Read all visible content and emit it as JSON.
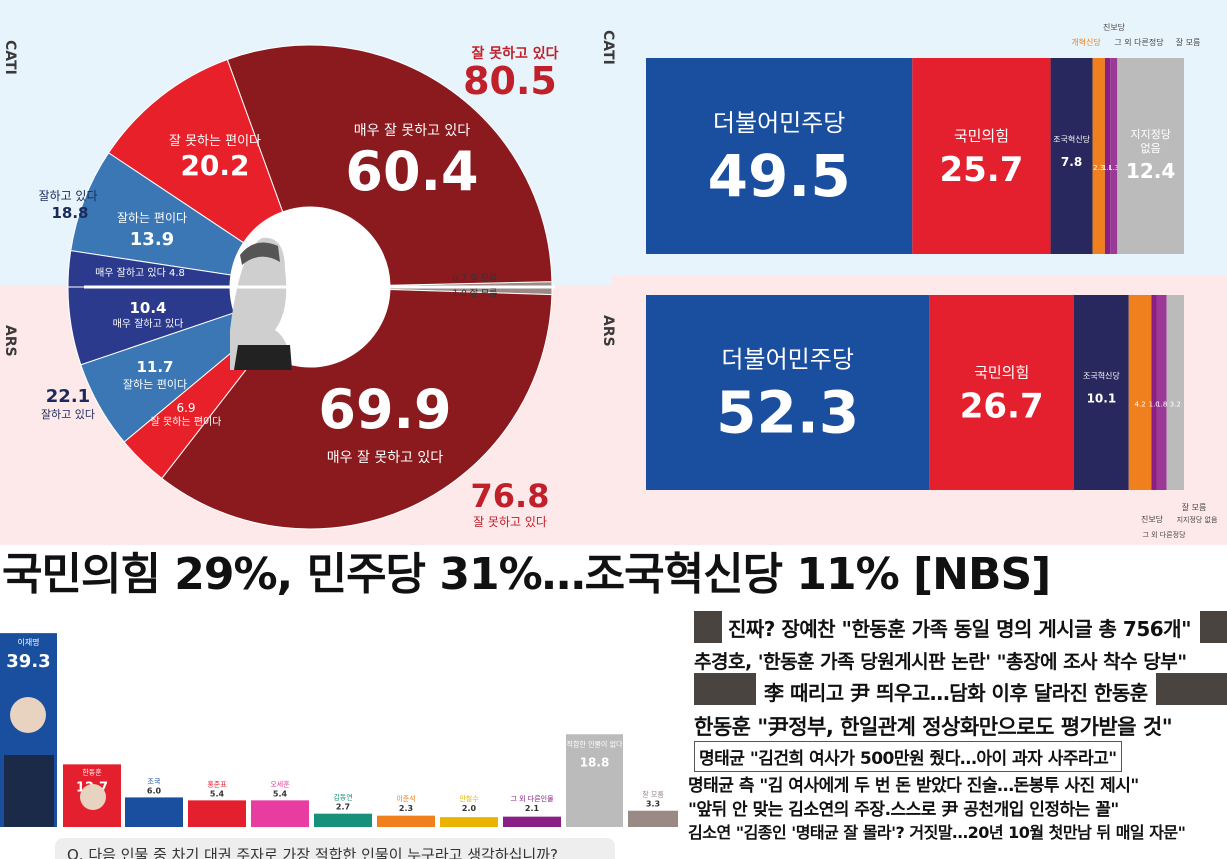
{
  "left_panel": {
    "cati_label": "CATI",
    "ars_label": "ARS"
  },
  "right_panel": {
    "cati_label": "CATI",
    "ars_label": "ARS"
  },
  "headline": "국민의힘 29%, 민주당 31%…조국혁신당 11% [NBS]",
  "news": [
    {
      "text": "진짜? 장예찬 \"한동훈 가족 동일 명의 게시글 총 756개\"",
      "has_thumb": true
    },
    {
      "text": "추경호, '한동훈 가족 당원게시판 논란' \"총장에 조사 착수 당부\"",
      "has_thumb": false
    },
    {
      "text": "李 때리고 尹 띄우고…담화 이후 달라진 한동훈",
      "has_thumb": true
    },
    {
      "text": "한동훈 \"尹정부, 한일관계 정상화만으로도 평가받을 것\"",
      "has_thumb": false
    },
    {
      "text": "명태균 \"김건희 여사가 500만원 줬다…아이 과자 사주라고\"",
      "has_thumb": false
    },
    {
      "text": "명태균 측 \"김 여사에게 두 번 돈 받았다 진술…돈봉투 사진 제시\"",
      "has_thumb": false
    },
    {
      "text": "\"앞뒤 안 맞는 김소연의 주장.스스로 尹 공천개입 인정하는 꼴\"",
      "has_thumb": false
    },
    {
      "text": "김소연 \"김종인 '명태균 잘 몰라'? 거짓말…20년 10월 첫만남 뒤 매일 자문\"",
      "has_thumb": false
    }
  ],
  "question": "Q. 다음 인물 중 차기 대권 주자로 가장 적합한 인물이 누구라고 생각하십니까?",
  "colors": {
    "very_bad": "#8b1a1f",
    "somewhat_bad": "#e8202a",
    "somewhat_good": "#3a77b4",
    "very_good": "#2b3a8c",
    "dont_know": "#9a8a85",
    "democratic": "#1a4fa0",
    "ppp": "#e5202e",
    "rebuilding": "#28285e",
    "reform": "#f07f1e",
    "progressive": "#8a2085",
    "other": "#bbbbbb"
  },
  "chart_data": [
    {
      "type": "pie",
      "subtype": "donut-split",
      "groups": [
        {
          "name": "CATI",
          "slices": [
            {
              "label": "잘 모름",
              "value": 0.7
            },
            {
              "label": "매우 잘 못하고 있다",
              "value": 60.4
            },
            {
              "label": "잘 못하는 편이다",
              "value": 20.2
            },
            {
              "label": "잘하는 편이다",
              "value": 13.9
            },
            {
              "label": "매우 잘하고 있다",
              "value": 4.8
            }
          ],
          "totals": [
            {
              "label": "잘 못하고 있다",
              "value": 80.5
            },
            {
              "label": "잘하고 있다",
              "value": 18.8
            }
          ]
        },
        {
          "name": "ARS",
          "slices": [
            {
              "label": "잘 모름",
              "value": 1.0
            },
            {
              "label": "매우 잘 못하고 있다",
              "value": 69.9
            },
            {
              "label": "잘 못하는 편이다",
              "value": 6.9
            },
            {
              "label": "잘하는 편이다",
              "value": 11.7
            },
            {
              "label": "매우 잘하고 있다",
              "value": 10.4
            }
          ],
          "totals": [
            {
              "label": "잘 못하고 있다",
              "value": 76.8
            },
            {
              "label": "잘하고 있다",
              "value": 22.1
            }
          ]
        }
      ]
    },
    {
      "type": "bar",
      "subtype": "stacked-100",
      "categories": [
        "더불어민주당",
        "국민의힘",
        "조국혁신당",
        "개혁신당",
        "진보당",
        "그 외 다른정당",
        "지지정당 없음",
        "잘 모름"
      ],
      "series": [
        {
          "name": "CATI",
          "values": [
            49.5,
            25.7,
            7.8,
            2.3,
            1.0,
            1.3,
            12.4,
            0.0
          ]
        },
        {
          "name": "ARS",
          "values": [
            52.3,
            26.7,
            10.1,
            4.2,
            1.0,
            1.8,
            3.2,
            0.0
          ]
        }
      ]
    },
    {
      "type": "bar",
      "categories": [
        "이재명",
        "한동훈",
        "조국",
        "홍준표",
        "오세훈",
        "김동연",
        "이준석",
        "안철수",
        "그 외 다른인물",
        "적합한 인물이 없다",
        "잘 모름"
      ],
      "values": [
        39.3,
        12.7,
        6.0,
        5.4,
        5.4,
        2.7,
        2.3,
        2.0,
        2.1,
        18.8,
        3.3
      ],
      "ylim": [
        0,
        45
      ]
    }
  ]
}
